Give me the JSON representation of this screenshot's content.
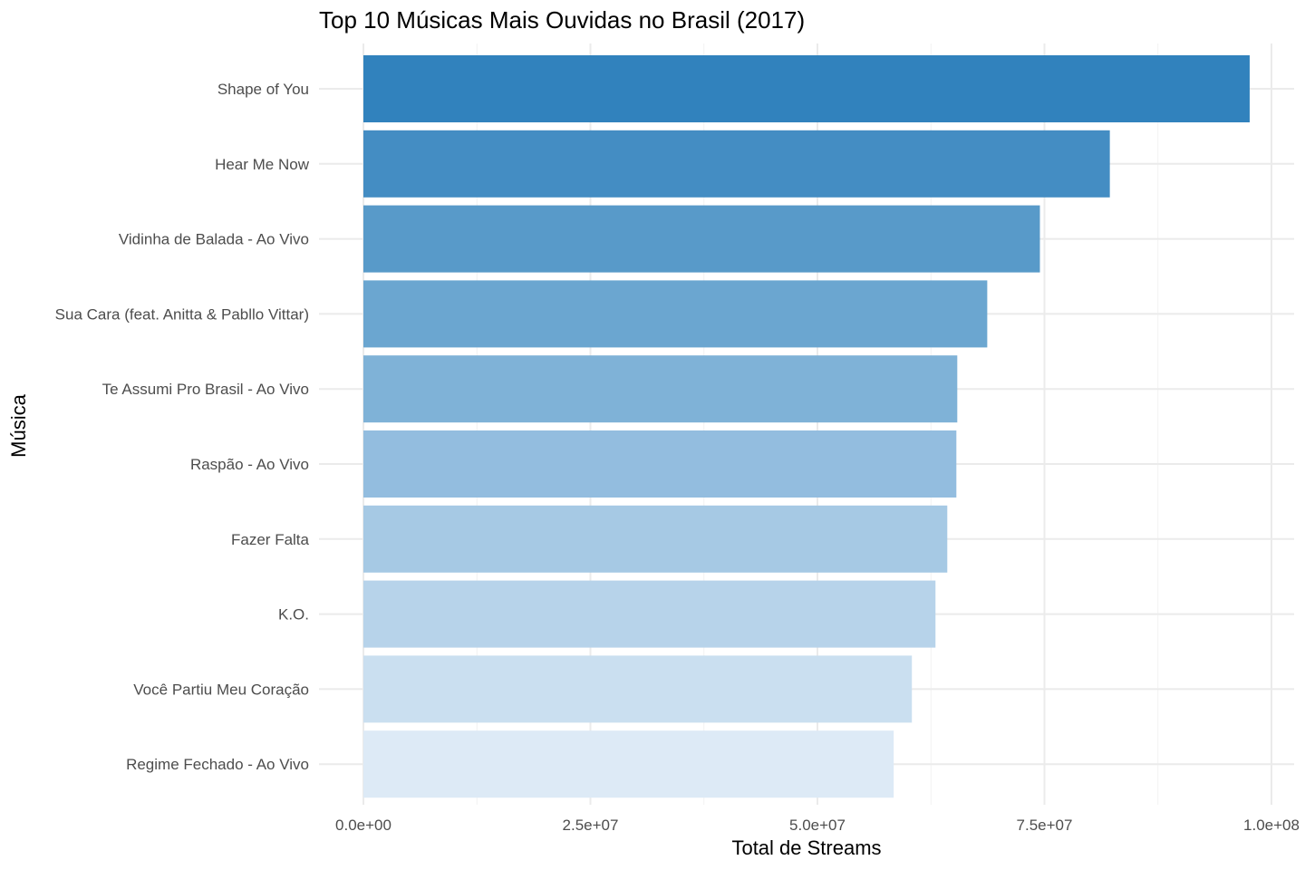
{
  "chart_data": {
    "type": "bar",
    "orientation": "horizontal",
    "title": "Top 10 Músicas Mais Ouvidas no Brasil (2017)",
    "xlabel": "Total de Streams",
    "ylabel": "Música",
    "xlim": [
      0,
      100000000
    ],
    "x_ticks": [
      0,
      25000000,
      50000000,
      75000000,
      100000000
    ],
    "x_tick_labels": [
      "0.0e+00",
      "2.5e+07",
      "5.0e+07",
      "7.5e+07",
      "1.0e+08"
    ],
    "grid": true,
    "legend": "none",
    "categories": [
      "Shape of You",
      "Hear Me Now",
      "Vidinha de Balada - Ao Vivo",
      "Sua Cara (feat. Anitta & Pabllo Vittar)",
      "Te Assumi Pro Brasil - Ao Vivo",
      "Raspão - Ao Vivo",
      "Fazer Falta",
      "K.O.",
      "Você Partiu Meu Coração",
      "Regime Fechado - Ao Vivo"
    ],
    "values": [
      97600000,
      82200000,
      74500000,
      68700000,
      65400000,
      65300000,
      64300000,
      63000000,
      60400000,
      58400000
    ],
    "colors": [
      "#3182bd",
      "#448dc3",
      "#589ac9",
      "#6ba6d0",
      "#7fb2d7",
      "#93bddf",
      "#a6c9e4",
      "#b7d3ea",
      "#cadff0",
      "#ddeaf6"
    ]
  }
}
